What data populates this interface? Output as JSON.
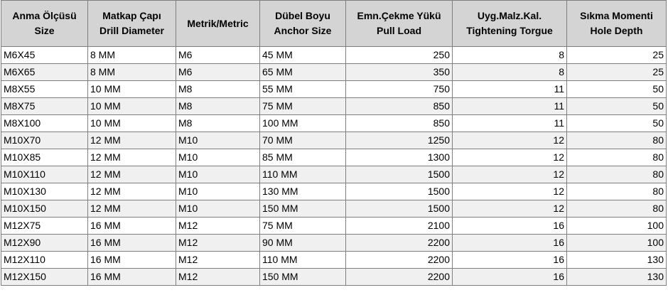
{
  "table": {
    "header": [
      [
        "Anma Ölçüsü",
        "Size"
      ],
      [
        "Matkap Çapı",
        "Drill Diameter"
      ],
      [
        "Metrik/Metric"
      ],
      [
        "Dübel Boyu",
        "Anchor Size"
      ],
      [
        "Emn.Çekme Yükü",
        "Pull Load"
      ],
      [
        "Uyg.Malz.Kal.",
        "Tightening Torgue"
      ],
      [
        "Sıkma Momenti",
        "Hole Depth"
      ]
    ],
    "rows": [
      [
        "M6X45",
        "8 MM",
        "M6",
        "45 MM",
        250,
        8,
        25
      ],
      [
        "M6X65",
        "8 MM",
        "M6",
        "65 MM",
        350,
        8,
        25
      ],
      [
        "M8X55",
        "10 MM",
        "M8",
        "55 MM",
        750,
        11,
        50
      ],
      [
        "M8X75",
        "10 MM",
        "M8",
        "75 MM",
        850,
        11,
        50
      ],
      [
        "M8X100",
        "10 MM",
        "M8",
        "100 MM",
        850,
        11,
        50
      ],
      [
        "M10X70",
        "12 MM",
        "M10",
        "70 MM",
        1250,
        12,
        80
      ],
      [
        "M10X85",
        "12 MM",
        "M10",
        "85 MM",
        1300,
        12,
        80
      ],
      [
        "M10X110",
        "12 MM",
        "M10",
        "110 MM",
        1500,
        12,
        80
      ],
      [
        "M10X130",
        "12 MM",
        "M10",
        "130 MM",
        1500,
        12,
        80
      ],
      [
        "M10X150",
        "12 MM",
        "M10",
        "150 MM",
        1500,
        12,
        80
      ],
      [
        "M12X75",
        "16 MM",
        "M12",
        "75 MM",
        2100,
        16,
        100
      ],
      [
        "M12X90",
        "16 MM",
        "M12",
        "90 MM",
        2200,
        16,
        100
      ],
      [
        "M12X110",
        "16 MM",
        "M12",
        "110 MM",
        2200,
        16,
        130
      ],
      [
        "M12X150",
        "16 MM",
        "M12",
        "150 MM",
        2200,
        16,
        130
      ]
    ]
  }
}
